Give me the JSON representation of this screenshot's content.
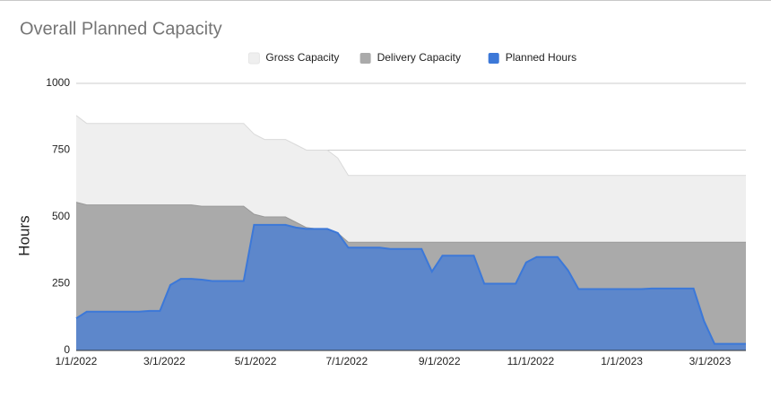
{
  "chart_data": {
    "type": "area",
    "title": "Overall Planned Capacity",
    "y_label": "Hours",
    "x": [
      "1/1/2022",
      "1/8/2022",
      "1/15/2022",
      "1/22/2022",
      "1/29/2022",
      "2/5/2022",
      "2/12/2022",
      "2/19/2022",
      "2/26/2022",
      "3/5/2022",
      "3/12/2022",
      "3/19/2022",
      "3/26/2022",
      "4/2/2022",
      "4/9/2022",
      "4/16/2022",
      "4/23/2022",
      "4/30/2022",
      "5/7/2022",
      "5/14/2022",
      "5/21/2022",
      "5/28/2022",
      "6/4/2022",
      "6/11/2022",
      "6/18/2022",
      "6/25/2022",
      "7/2/2022",
      "7/9/2022",
      "7/16/2022",
      "7/23/2022",
      "7/30/2022",
      "8/6/2022",
      "8/13/2022",
      "8/20/2022",
      "8/27/2022",
      "9/3/2022",
      "9/10/2022",
      "9/17/2022",
      "9/24/2022",
      "10/1/2022",
      "10/8/2022",
      "10/15/2022",
      "10/22/2022",
      "10/29/2022",
      "11/5/2022",
      "11/12/2022",
      "11/19/2022",
      "11/26/2022",
      "12/3/2022",
      "12/10/2022",
      "12/17/2022",
      "12/24/2022",
      "12/31/2022",
      "1/7/2023",
      "1/14/2023",
      "1/21/2023",
      "1/28/2023",
      "2/4/2023",
      "2/11/2023",
      "2/18/2023",
      "2/25/2023",
      "3/4/2023",
      "3/11/2023",
      "3/18/2023",
      "3/25/2023"
    ],
    "series": [
      {
        "name": "Gross Capacity",
        "color": "#efefef",
        "line_color": "#dadada",
        "values": [
          880,
          850,
          850,
          850,
          850,
          850,
          850,
          850,
          850,
          850,
          850,
          850,
          850,
          850,
          850,
          850,
          850,
          810,
          790,
          790,
          790,
          770,
          750,
          750,
          750,
          720,
          655,
          655,
          655,
          655,
          655,
          655,
          655,
          655,
          655,
          655,
          655,
          655,
          655,
          655,
          655,
          655,
          655,
          655,
          655,
          655,
          655,
          655,
          655,
          655,
          655,
          655,
          655,
          655,
          655,
          655,
          655,
          655,
          655,
          655,
          655,
          655,
          655,
          655,
          655
        ]
      },
      {
        "name": "Delivery Capacity",
        "color": "#aaaaaa",
        "line_color": "#999999",
        "values": [
          555,
          545,
          545,
          545,
          545,
          545,
          545,
          545,
          545,
          545,
          545,
          545,
          540,
          540,
          540,
          540,
          540,
          510,
          500,
          500,
          500,
          480,
          460,
          455,
          455,
          440,
          405,
          405,
          405,
          405,
          405,
          405,
          405,
          405,
          405,
          405,
          405,
          405,
          405,
          405,
          405,
          405,
          405,
          405,
          405,
          405,
          405,
          405,
          405,
          405,
          405,
          405,
          405,
          405,
          405,
          405,
          405,
          405,
          405,
          405,
          405,
          405,
          405,
          405,
          405
        ]
      },
      {
        "name": "Planned Hours",
        "color": "#3c78d8",
        "line_color": "#3c78d8",
        "values": [
          120,
          145,
          145,
          145,
          145,
          145,
          145,
          148,
          148,
          245,
          268,
          268,
          265,
          260,
          260,
          260,
          260,
          470,
          470,
          470,
          470,
          460,
          455,
          455,
          455,
          440,
          385,
          385,
          385,
          385,
          380,
          380,
          380,
          380,
          295,
          355,
          355,
          355,
          355,
          250,
          250,
          250,
          250,
          330,
          350,
          350,
          350,
          300,
          230,
          230,
          230,
          230,
          230,
          230,
          230,
          232,
          232,
          232,
          232,
          232,
          110,
          25,
          25,
          25,
          25
        ]
      }
    ],
    "xlim": [
      "1/1/2022",
      "3/25/2023"
    ],
    "xticks": [
      "1/1/2022",
      "3/1/2022",
      "5/1/2022",
      "7/1/2022",
      "9/1/2022",
      "11/1/2022",
      "1/1/2023",
      "3/1/2023"
    ],
    "ylim": [
      0,
      1000
    ],
    "yticks": [
      0,
      250,
      500,
      750,
      1000
    ],
    "grid": true,
    "legend": "top"
  }
}
